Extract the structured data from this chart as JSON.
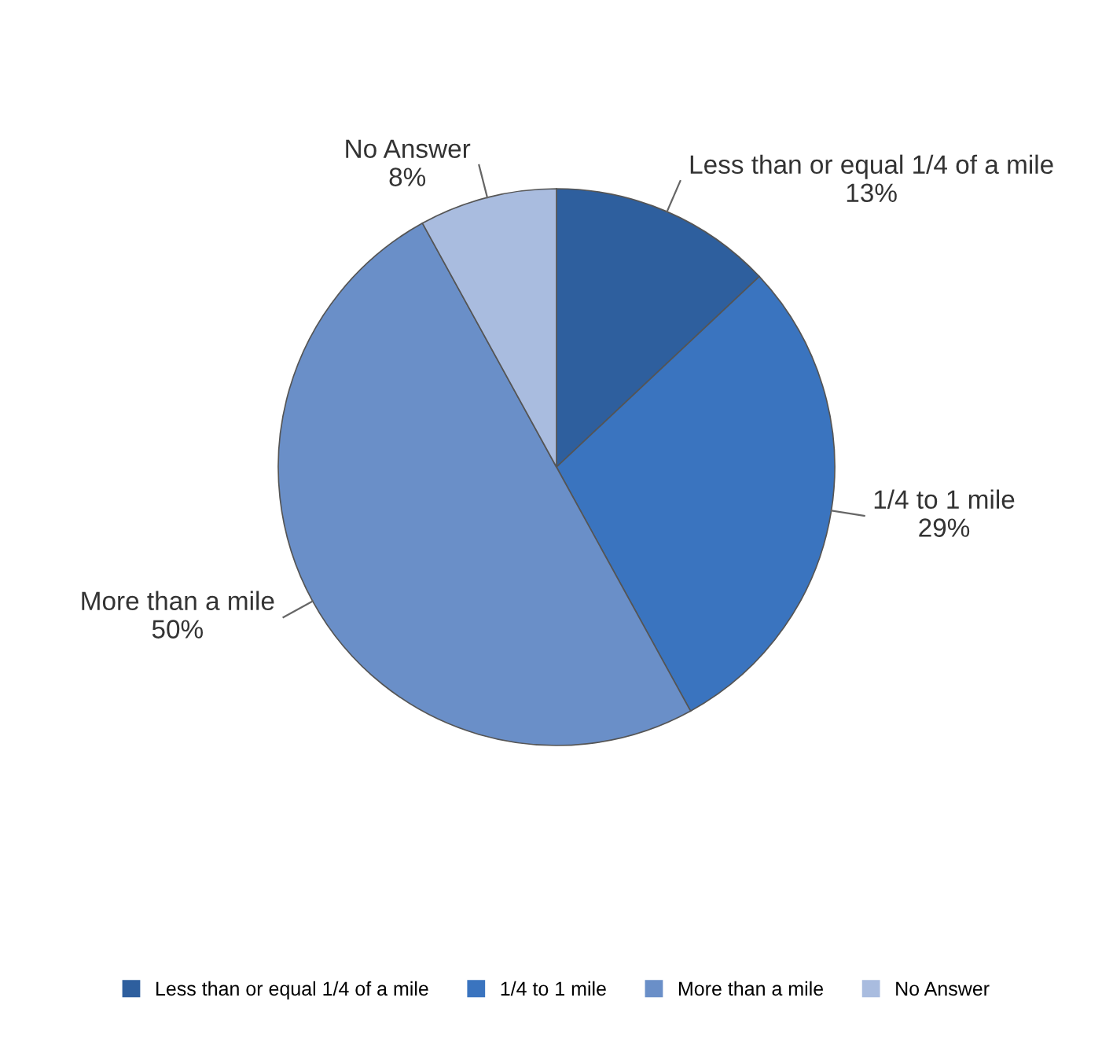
{
  "chart_data": {
    "type": "pie",
    "categories": [
      "Less than or equal 1/4 of a mile",
      "1/4 to 1 mile",
      "More than a mile",
      "No Answer"
    ],
    "values": [
      13,
      29,
      50,
      8
    ],
    "colors": [
      "#2e5f9e",
      "#3a74bf",
      "#6a8fc8",
      "#a9bcdf"
    ],
    "value_labels": [
      "13%",
      "29%",
      "50%",
      "8%"
    ],
    "legend": "bottom"
  }
}
